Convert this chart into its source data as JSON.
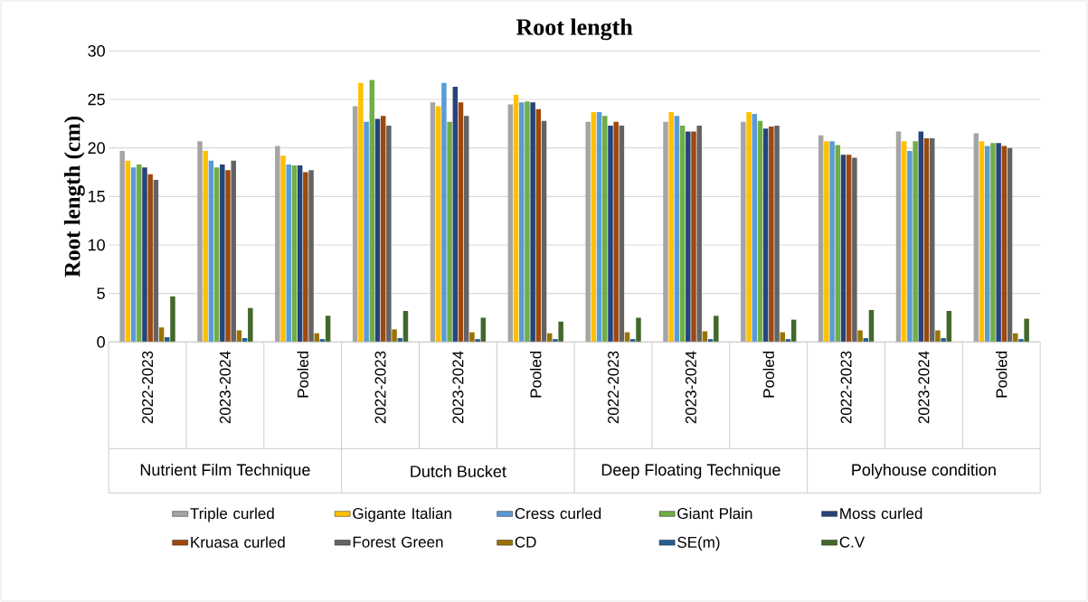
{
  "chart_data": {
    "type": "bar",
    "title": "Root length",
    "ylabel": "Root length (cm)",
    "categories": [
      "2022-2023",
      "2023-2024",
      "Pooled",
      "2022-2023",
      "2023-2024",
      "Pooled",
      "2022-2023",
      "2023-2024",
      "Pooled",
      "2022-2023",
      "2023-2024",
      "Pooled"
    ],
    "annotations": [
      "Nutrient Film Technique",
      "Dutch Bucket",
      "Deep Floating Technique",
      "Polyhouse condition"
    ],
    "series": [
      {
        "name": "Triple curled",
        "color": "#a5a5a5",
        "values": [
          19.7,
          20.7,
          20.2,
          24.3,
          24.7,
          24.5,
          22.7,
          22.7,
          22.7,
          21.3,
          21.7,
          21.5
        ]
      },
      {
        "name": "Gigante Italian",
        "color": "#ffc000",
        "values": [
          18.7,
          19.7,
          19.2,
          26.7,
          24.3,
          25.5,
          23.7,
          23.7,
          23.7,
          20.7,
          20.7,
          20.7
        ]
      },
      {
        "name": "Cress curled",
        "color": "#5b9bd5",
        "values": [
          18.0,
          18.7,
          18.3,
          22.7,
          26.7,
          24.7,
          23.7,
          23.3,
          23.5,
          20.7,
          19.7,
          20.2
        ]
      },
      {
        "name": "Giant Plain",
        "color": "#70ad47",
        "values": [
          18.3,
          18.0,
          18.2,
          27.0,
          22.7,
          24.8,
          23.3,
          22.3,
          22.8,
          20.3,
          20.7,
          20.5
        ]
      },
      {
        "name": "Moss curled",
        "color": "#264478",
        "values": [
          18.0,
          18.3,
          18.2,
          23.0,
          26.3,
          24.7,
          22.3,
          21.7,
          22.0,
          19.3,
          21.7,
          20.5
        ]
      },
      {
        "name": "Kruasa curled",
        "color": "#9e480e",
        "values": [
          17.3,
          17.7,
          17.5,
          23.3,
          24.7,
          24.0,
          22.7,
          21.7,
          22.2,
          19.3,
          21.0,
          20.2
        ]
      },
      {
        "name": "Forest Green",
        "color": "#636363",
        "values": [
          16.7,
          18.7,
          17.7,
          22.3,
          23.3,
          22.8,
          22.3,
          22.3,
          22.3,
          19.0,
          21.0,
          20.0
        ]
      },
      {
        "name": "CD",
        "color": "#997300",
        "values": [
          1.5,
          1.2,
          0.9,
          1.3,
          1.0,
          0.9,
          1.0,
          1.1,
          1.0,
          1.2,
          1.2,
          0.9
        ]
      },
      {
        "name": "SE(m)",
        "color": "#255e91",
        "values": [
          0.5,
          0.4,
          0.3,
          0.4,
          0.3,
          0.3,
          0.3,
          0.3,
          0.3,
          0.4,
          0.4,
          0.3
        ]
      },
      {
        "name": "C.V",
        "color": "#43682b",
        "values": [
          4.7,
          3.5,
          2.7,
          3.2,
          2.5,
          2.1,
          2.5,
          2.7,
          2.3,
          3.3,
          3.2,
          2.4
        ]
      }
    ],
    "ylim": [
      0,
      30
    ],
    "yticks": [
      0,
      5,
      10,
      15,
      20,
      25,
      30
    ],
    "grid": "y",
    "legend": "bottom"
  }
}
